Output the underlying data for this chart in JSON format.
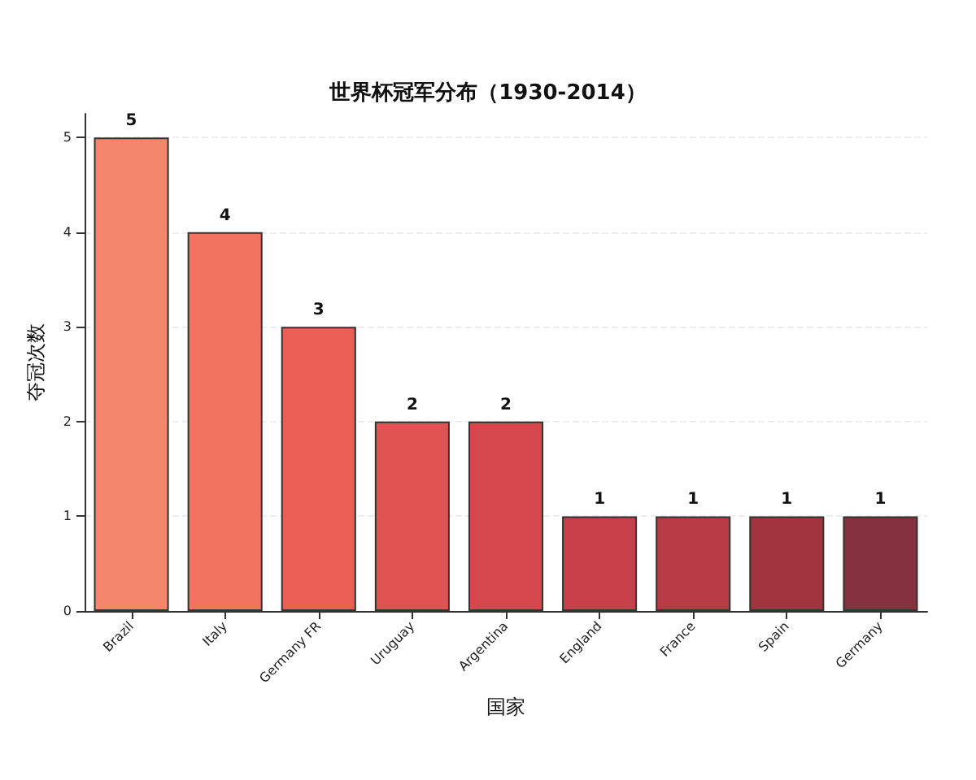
{
  "chart_data": {
    "type": "bar",
    "title": "世界杯冠军分布（1930-2014）",
    "xlabel": "国家",
    "ylabel": "夺冠次数",
    "categories": [
      "Brazil",
      "Italy",
      "Germany FR",
      "Uruguay",
      "Argentina",
      "England",
      "France",
      "Spain",
      "Germany"
    ],
    "values": [
      5,
      4,
      3,
      2,
      2,
      1,
      1,
      1,
      1
    ],
    "colors": [
      "#f4866c",
      "#f17460",
      "#ea5f53",
      "#e05353",
      "#d5474c",
      "#c73f48",
      "#b83c45",
      "#a23440",
      "#85303d"
    ],
    "ylim": [
      0,
      5.25
    ],
    "yticks": [
      0,
      1,
      2,
      3,
      4,
      5
    ],
    "grid": "y",
    "data_labels": true
  }
}
